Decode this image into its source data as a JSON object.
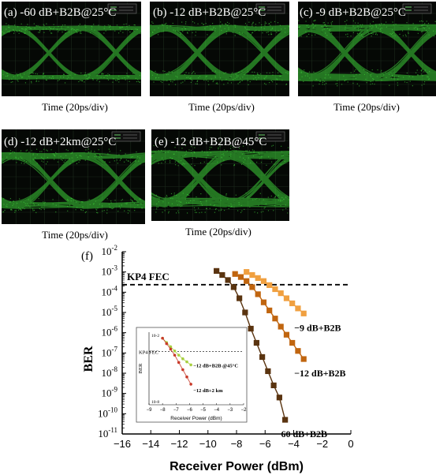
{
  "eye_panels": [
    {
      "label": "(a) -60 dB+B2B@25°C",
      "xlabel": "Time (20ps/div)"
    },
    {
      "label": "(b) -12 dB+B2B@25°C",
      "xlabel": "Time (20ps/div)"
    },
    {
      "label": "(c) -9 dB+B2B@25°C",
      "xlabel": "Time (20ps/div)"
    },
    {
      "label": "(d) -12 dB+2km@25°C",
      "xlabel": "Time (20ps/div)"
    },
    {
      "label": "(e) -12 dB+B2B@45°C",
      "xlabel": "Time (20ps/div)"
    }
  ],
  "colors": {
    "eye": "#3fd13a",
    "dark_brown": "#5a3410",
    "mid_brown": "#c0650f",
    "orange": "#f0a040",
    "inset_red": "#c83a2a",
    "inset_green": "#a8d040"
  },
  "chart_data": {
    "type": "line",
    "panel_label": "(f)",
    "xlabel": "Receiver Power (dBm)",
    "ylabel": "BER",
    "xlim": [
      -16,
      0
    ],
    "ylim_exp": [
      -11,
      -2
    ],
    "xticks": [
      -16,
      -14,
      -12,
      -10,
      -8,
      -6,
      -4,
      -2,
      0
    ],
    "yticks": [
      "10-2",
      "10-3",
      "10-4",
      "10-5",
      "10-6",
      "10-7",
      "10-8",
      "10-9",
      "10-10",
      "10-11"
    ],
    "fec": {
      "label": "KP4 FEC",
      "log10_ber": -3.63
    },
    "series": [
      {
        "name": "−60 dB+B2B",
        "color_key": "dark_brown",
        "x": [
          -9.4,
          -9.0,
          -8.6,
          -8.2,
          -7.8,
          -7.4,
          -7.0,
          -6.6,
          -6.2,
          -5.8,
          -5.4,
          -5.0,
          -4.6
        ],
        "log10_ber": [
          -2.95,
          -3.15,
          -3.4,
          -3.75,
          -4.3,
          -5.0,
          -5.8,
          -6.5,
          -7.2,
          -7.9,
          -8.6,
          -9.2,
          -10.3
        ]
      },
      {
        "name": "−12 dB+B2B",
        "color_key": "mid_brown",
        "x": [
          -8.1,
          -7.7,
          -7.3,
          -6.9,
          -6.5,
          -6.1,
          -5.7,
          -5.3,
          -4.9,
          -4.5,
          -4.1,
          -3.7,
          -3.3
        ],
        "log10_ber": [
          -3.1,
          -3.25,
          -3.45,
          -3.75,
          -4.1,
          -4.5,
          -4.9,
          -5.3,
          -5.7,
          -6.1,
          -6.5,
          -6.9,
          -7.3
        ]
      },
      {
        "name": "−9 dB+B2B",
        "color_key": "orange",
        "x": [
          -7.3,
          -6.9,
          -6.5,
          -6.1,
          -5.7,
          -5.3,
          -4.9,
          -4.5,
          -4.1,
          -3.7,
          -3.3
        ],
        "log10_ber": [
          -3.0,
          -3.15,
          -3.3,
          -3.45,
          -3.65,
          -3.85,
          -4.05,
          -4.3,
          -4.55,
          -4.8,
          -5.05
        ]
      }
    ],
    "inset": {
      "xlabel": "Receiver Power (dBm)",
      "ylabel": "BER",
      "xticks": [
        -9,
        -8,
        -7,
        -6,
        -5,
        -4,
        -3,
        -2
      ],
      "ytick_top": "10-2",
      "ytick_bottom": "10-8",
      "fec_label": "KP4 FEC",
      "series": [
        {
          "name": "−12 dB+B2B @45°C",
          "color_key": "inset_green",
          "x": [
            -8.0,
            -7.7,
            -7.4,
            -7.1,
            -6.8,
            -6.5,
            -6.2,
            -5.9
          ],
          "log10_ber": [
            -2.5,
            -2.85,
            -3.2,
            -3.55,
            -3.9,
            -4.2,
            -4.45,
            -4.7
          ]
        },
        {
          "name": "−12 dB+2 km",
          "color_key": "inset_red",
          "x": [
            -8.0,
            -7.7,
            -7.4,
            -7.1,
            -6.8,
            -6.5,
            -6.2,
            -5.9
          ],
          "log10_ber": [
            -2.5,
            -2.95,
            -3.4,
            -3.9,
            -4.5,
            -5.1,
            -5.7,
            -6.3
          ]
        }
      ]
    }
  }
}
